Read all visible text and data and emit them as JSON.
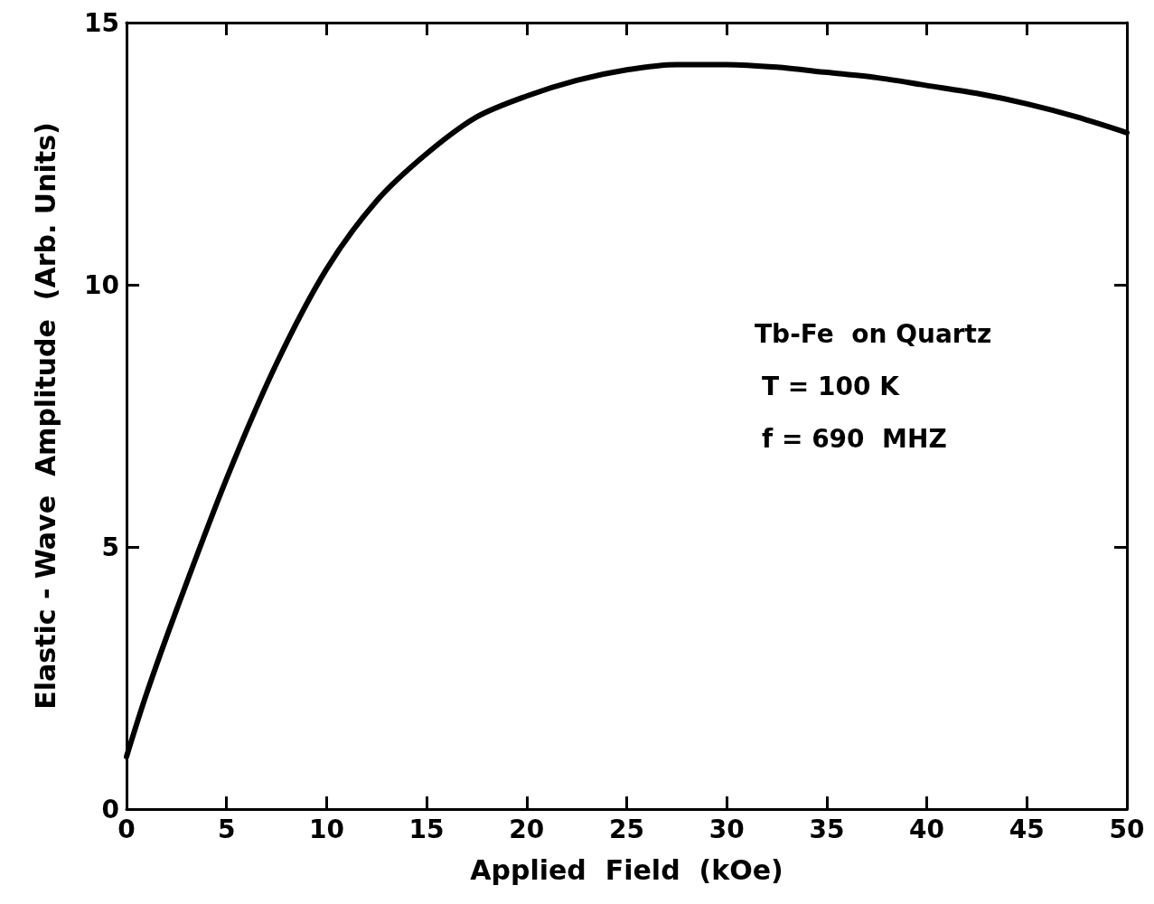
{
  "chart_data": {
    "type": "line",
    "xlabel": "Applied  Field  (kOe)",
    "ylabel": "Elastic - Wave  Amplitude  (Arb. Units)",
    "annotations": [
      "Tb-Fe  on Quartz",
      "T = 100 K",
      "f = 690  MHZ"
    ],
    "x": [
      0,
      1,
      2.5,
      5,
      7.5,
      10,
      12.5,
      15,
      17.5,
      20,
      22.5,
      25,
      27.5,
      30,
      32.5,
      35,
      37.5,
      40,
      42.5,
      45,
      47.5,
      50
    ],
    "series": [
      {
        "color": "#000000",
        "values": [
          1.0,
          2.2,
          3.8,
          6.3,
          8.5,
          10.3,
          11.6,
          12.5,
          13.2,
          13.6,
          13.9,
          14.1,
          14.2,
          14.2,
          14.15,
          14.05,
          13.95,
          13.8,
          13.65,
          13.45,
          13.2,
          12.9
        ]
      }
    ],
    "xlim": [
      0,
      50
    ],
    "xticks": [
      0,
      5,
      10,
      15,
      20,
      25,
      30,
      35,
      40,
      45,
      50
    ],
    "ylim": [
      0,
      15
    ],
    "yticks": [
      0,
      5,
      10,
      15
    ],
    "grid": false,
    "marker": "none",
    "line_style": "solid"
  }
}
